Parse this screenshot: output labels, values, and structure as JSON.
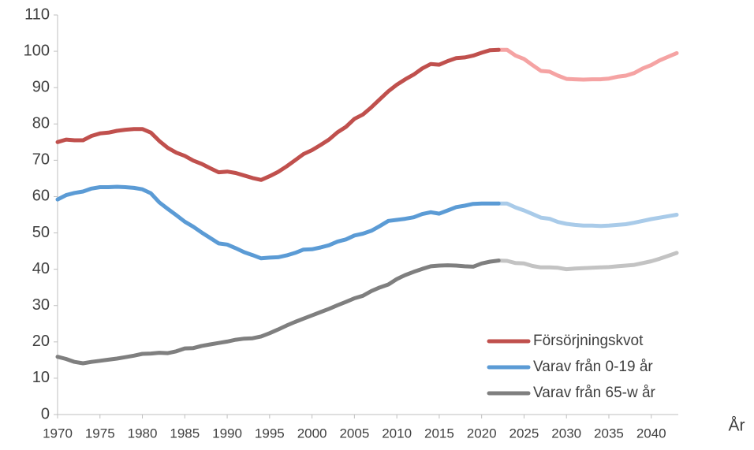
{
  "chart_data": {
    "type": "line",
    "x_label": "År",
    "x": [
      1970,
      1971,
      1972,
      1973,
      1974,
      1975,
      1976,
      1977,
      1978,
      1979,
      1980,
      1981,
      1982,
      1983,
      1984,
      1985,
      1986,
      1987,
      1988,
      1989,
      1990,
      1991,
      1992,
      1993,
      1994,
      1995,
      1996,
      1997,
      1998,
      1999,
      2000,
      2001,
      2002,
      2003,
      2004,
      2005,
      2006,
      2007,
      2008,
      2009,
      2010,
      2011,
      2012,
      2013,
      2014,
      2015,
      2016,
      2017,
      2018,
      2019,
      2020,
      2021,
      2022,
      2023,
      2024,
      2025,
      2026,
      2027,
      2028,
      2029,
      2030,
      2031,
      2032,
      2033,
      2034,
      2035,
      2036,
      2037,
      2038,
      2039,
      2040,
      2041,
      2042,
      2043
    ],
    "xlim": [
      1970,
      2043
    ],
    "xticks": [
      1970,
      1975,
      1980,
      1985,
      1990,
      1995,
      2000,
      2005,
      2010,
      2015,
      2020,
      2025,
      2030,
      2035,
      2040
    ],
    "ylim": [
      0,
      110
    ],
    "yticks": [
      0,
      10,
      20,
      30,
      40,
      50,
      60,
      70,
      80,
      90,
      100,
      110
    ],
    "grid": false,
    "legend": "lower right",
    "series": [
      {
        "name": "Försörjningskvot",
        "color": "#c0504d",
        "projection_color": "#f5a3a3",
        "values": [
          75,
          75.7,
          75.5,
          75.5,
          76.7,
          77.4,
          77.6,
          78.1,
          78.4,
          78.6,
          78.6,
          77.6,
          75.3,
          73.4,
          72.1,
          71.2,
          69.9,
          69,
          67.8,
          66.7,
          66.9,
          66.5,
          65.8,
          65.1,
          64.6,
          65.6,
          66.8,
          68.3,
          70,
          71.7,
          72.8,
          74.2,
          75.7,
          77.7,
          79.2,
          81.4,
          82.6,
          84.6,
          86.8,
          89,
          90.8,
          92.3,
          93.6,
          95.3,
          96.5,
          96.3,
          97.3,
          98.1,
          98.3,
          98.8,
          99.6,
          100.3,
          100.4,
          null,
          null,
          null,
          null,
          null,
          null,
          null,
          null,
          null,
          null,
          null,
          null,
          null,
          null,
          null,
          null,
          null,
          null,
          null,
          null,
          null
        ],
        "projection_values": [
          null,
          null,
          null,
          null,
          null,
          null,
          null,
          null,
          null,
          null,
          null,
          null,
          null,
          null,
          null,
          null,
          null,
          null,
          null,
          null,
          null,
          null,
          null,
          null,
          null,
          null,
          null,
          null,
          null,
          null,
          null,
          null,
          null,
          null,
          null,
          null,
          null,
          null,
          null,
          null,
          null,
          null,
          null,
          null,
          null,
          null,
          null,
          null,
          null,
          null,
          null,
          null,
          100.4,
          100.4,
          98.8,
          97.9,
          96.2,
          94.6,
          94.4,
          93.3,
          92.4,
          92.3,
          92.2,
          92.3,
          92.3,
          92.5,
          93,
          93.3,
          94,
          95.3,
          96.2,
          97.5,
          98.5,
          99.5
        ]
      },
      {
        "name": "Varav från 0-19 år",
        "color": "#5b9bd5",
        "projection_color": "#a9cbe9",
        "values": [
          59.2,
          60.4,
          61,
          61.4,
          62.2,
          62.6,
          62.6,
          62.7,
          62.6,
          62.4,
          62,
          60.9,
          58.4,
          56.6,
          54.9,
          53.1,
          51.7,
          50.1,
          48.6,
          47.1,
          46.8,
          45.8,
          44.7,
          43.9,
          43,
          43.2,
          43.3,
          43.8,
          44.5,
          45.4,
          45.5,
          46,
          46.6,
          47.6,
          48.2,
          49.3,
          49.8,
          50.6,
          51.9,
          53.3,
          53.6,
          53.9,
          54.3,
          55.2,
          55.7,
          55.3,
          56.2,
          57.1,
          57.5,
          58,
          58.1,
          58.1,
          58.1,
          null,
          null,
          null,
          null,
          null,
          null,
          null,
          null,
          null,
          null,
          null,
          null,
          null,
          null,
          null,
          null,
          null,
          null,
          null,
          null,
          null
        ],
        "projection_values": [
          null,
          null,
          null,
          null,
          null,
          null,
          null,
          null,
          null,
          null,
          null,
          null,
          null,
          null,
          null,
          null,
          null,
          null,
          null,
          null,
          null,
          null,
          null,
          null,
          null,
          null,
          null,
          null,
          null,
          null,
          null,
          null,
          null,
          null,
          null,
          null,
          null,
          null,
          null,
          null,
          null,
          null,
          null,
          null,
          null,
          null,
          null,
          null,
          null,
          null,
          null,
          null,
          58.1,
          58.1,
          57,
          56.2,
          55.2,
          54.2,
          53.9,
          53,
          52.5,
          52.2,
          52,
          52,
          51.9,
          52,
          52.2,
          52.4,
          52.8,
          53.3,
          53.8,
          54.2,
          54.6,
          55
        ]
      },
      {
        "name": "Varav från 65-w år",
        "color": "#7f7f7f",
        "projection_color": "#c3c3c3",
        "values": [
          15.9,
          15.3,
          14.5,
          14.1,
          14.5,
          14.8,
          15.1,
          15.4,
          15.8,
          16.2,
          16.7,
          16.8,
          17,
          16.9,
          17.4,
          18.2,
          18.3,
          18.9,
          19.3,
          19.7,
          20.1,
          20.6,
          20.9,
          21,
          21.5,
          22.4,
          23.4,
          24.5,
          25.5,
          26.4,
          27.3,
          28.2,
          29.1,
          30.1,
          31,
          32,
          32.7,
          34,
          35,
          35.8,
          37.3,
          38.4,
          39.3,
          40.1,
          40.8,
          41,
          41.1,
          41,
          40.8,
          40.7,
          41.6,
          42.1,
          42.4,
          null,
          null,
          null,
          null,
          null,
          null,
          null,
          null,
          null,
          null,
          null,
          null,
          null,
          null,
          null,
          null,
          null,
          null,
          null,
          null,
          null
        ],
        "projection_values": [
          null,
          null,
          null,
          null,
          null,
          null,
          null,
          null,
          null,
          null,
          null,
          null,
          null,
          null,
          null,
          null,
          null,
          null,
          null,
          null,
          null,
          null,
          null,
          null,
          null,
          null,
          null,
          null,
          null,
          null,
          null,
          null,
          null,
          null,
          null,
          null,
          null,
          null,
          null,
          null,
          null,
          null,
          null,
          null,
          null,
          null,
          null,
          null,
          null,
          null,
          null,
          null,
          42.4,
          42.3,
          41.7,
          41.6,
          40.9,
          40.5,
          40.5,
          40.4,
          40,
          40.2,
          40.3,
          40.4,
          40.5,
          40.6,
          40.8,
          41,
          41.2,
          41.7,
          42.2,
          42.9,
          43.7,
          44.5
        ]
      }
    ]
  }
}
